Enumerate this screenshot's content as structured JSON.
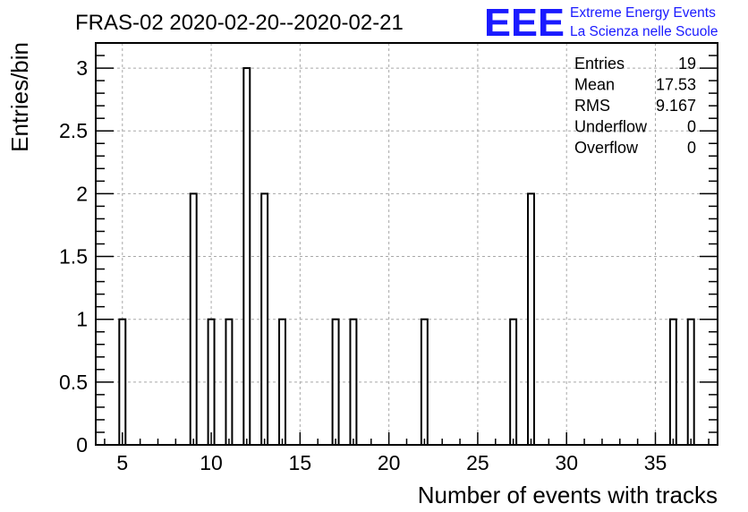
{
  "logo": {
    "mark": "EEE",
    "line1": "Extreme Energy Events",
    "line2": "La Scienza nelle Scuole",
    "color": "#1a1aff"
  },
  "chart_data": {
    "type": "bar",
    "title": "FRAS-02 2020-02-20--2020-02-21",
    "xlabel": "Number of events with tracks",
    "ylabel": "Entries/bin",
    "xlim": [
      3.5,
      38.5
    ],
    "ylim": [
      0,
      3.2
    ],
    "xticks": [
      5,
      10,
      15,
      20,
      25,
      30,
      35
    ],
    "yticks": [
      0,
      0.5,
      1,
      1.5,
      2,
      2.5,
      3
    ],
    "ytick_labels": [
      "0",
      "0.5",
      "1",
      "1.5",
      "2",
      "2.5",
      "3"
    ],
    "grid": true,
    "bin_width": 0.35,
    "bins": [
      {
        "x": 5,
        "count": 1
      },
      {
        "x": 9,
        "count": 2
      },
      {
        "x": 10,
        "count": 1
      },
      {
        "x": 11,
        "count": 1
      },
      {
        "x": 12,
        "count": 3
      },
      {
        "x": 13,
        "count": 2
      },
      {
        "x": 14,
        "count": 1
      },
      {
        "x": 17,
        "count": 1
      },
      {
        "x": 18,
        "count": 1
      },
      {
        "x": 22,
        "count": 1
      },
      {
        "x": 27,
        "count": 1
      },
      {
        "x": 28,
        "count": 2
      },
      {
        "x": 36,
        "count": 1
      },
      {
        "x": 37,
        "count": 1
      }
    ],
    "stats": [
      {
        "label": "Entries",
        "value": "19"
      },
      {
        "label": "Mean",
        "value": "17.53"
      },
      {
        "label": "RMS",
        "value": "9.167"
      },
      {
        "label": "Underflow",
        "value": "0"
      },
      {
        "label": "Overflow",
        "value": "0"
      }
    ],
    "stats_placement": "top-right"
  }
}
